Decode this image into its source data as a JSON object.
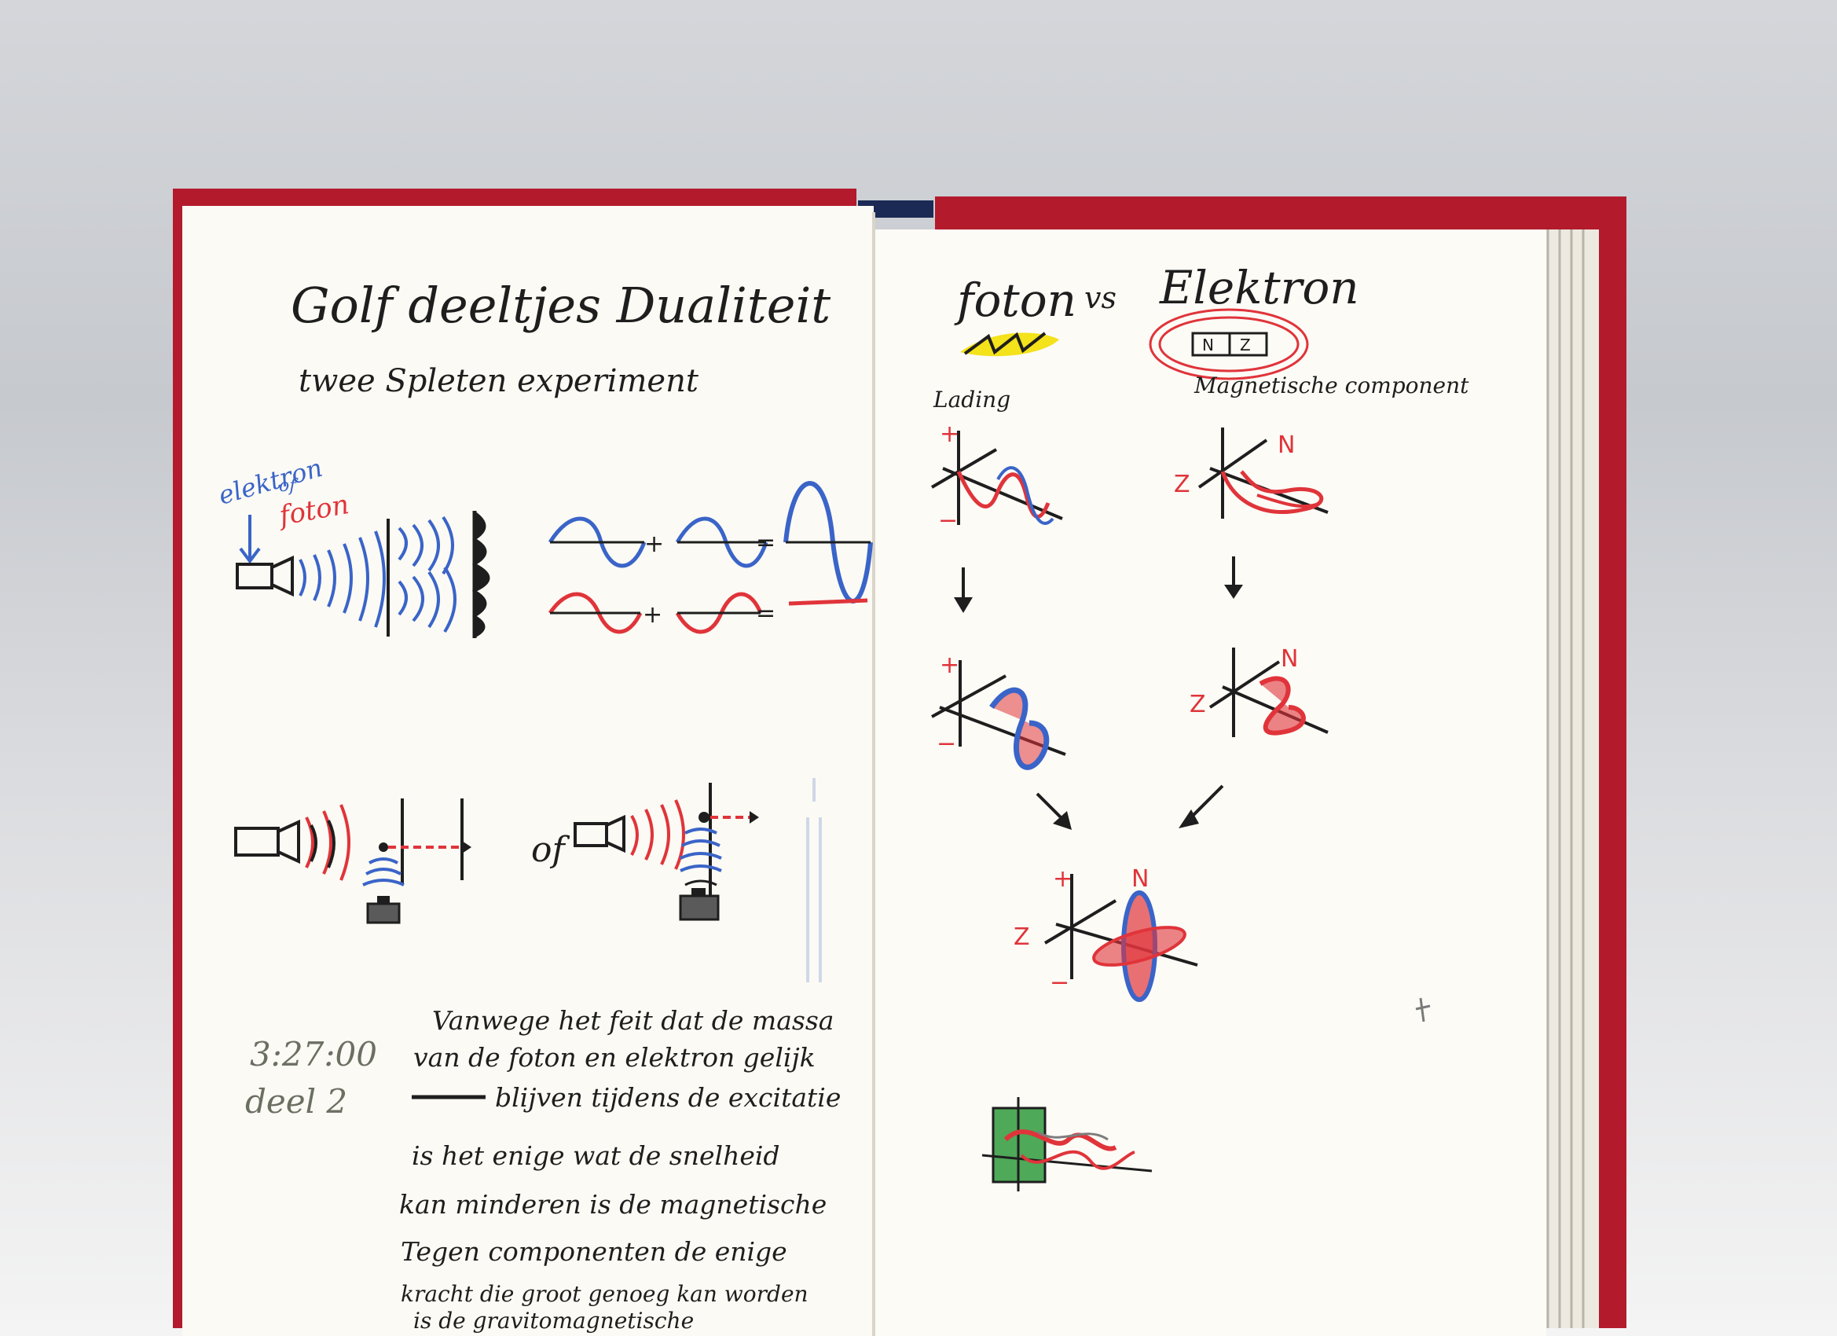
{
  "left_page": {
    "title": "Golf deeltjes Dualiteit",
    "subtitle": "twee Spleten experiment",
    "label_elektron": "elektron",
    "label_of": "of",
    "label_foton": "foton",
    "plus": "+",
    "equals": "=",
    "word_of": "of",
    "time": "3:27:00",
    "deel": "deel 2",
    "note_lines": [
      "Vanwege het feit dat de massa",
      "van de foton en elektron gelijk",
      "blijven tijdens de excitatie",
      "is het enige wat de snelheid",
      "kan minderen is de magnetische",
      "Tegen componenten de enige",
      "kracht die groot genoeg kan worden",
      "is de gravitomagnetische"
    ],
    "colors": {
      "blue": "#3a64c8",
      "red": "#e0343a",
      "ink": "#1e1e1e",
      "pencil": "#6b6f62"
    }
  },
  "right_page": {
    "title_foton": "foton",
    "title_vs": "vs",
    "title_elektron": "Elektron",
    "label_lading": "Lading",
    "label_magnetisch": "Magnetische component",
    "plus": "+",
    "minus": "−",
    "z": "Z",
    "n": "N",
    "magnet_n": "N",
    "magnet_z": "Z",
    "colors": {
      "yellow": "#f4e21a",
      "green": "#2f9a3c"
    }
  },
  "icons": [
    "electron-gun-icon",
    "detector-icon",
    "down-arrow-icon",
    "diagonal-arrow-icon",
    "bar-magnet-icon"
  ]
}
